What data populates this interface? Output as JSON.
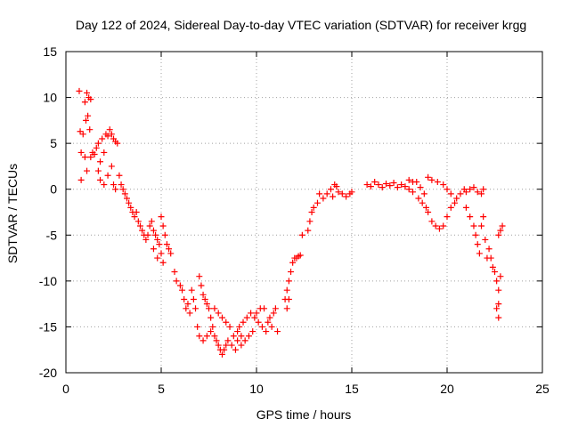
{
  "chart_data": {
    "type": "scatter",
    "title": "Day 122 of 2024, Sidereal Day-to-day VTEC variation (SDTVAR) for receiver krgg",
    "xlabel": "GPS time / hours",
    "ylabel": "SDTVAR / TECUs",
    "xlim": [
      0,
      25
    ],
    "ylim": [
      -20,
      15
    ],
    "xticks": [
      "0",
      "5",
      "10",
      "15",
      "20",
      "25"
    ],
    "yticks": [
      "-20",
      "-15",
      "-10",
      "-5",
      "0",
      "5",
      "10",
      "15"
    ],
    "grid": true,
    "marker": "+",
    "series_color": "#ff0000",
    "series": [
      {
        "name": "SDTVAR",
        "points": [
          [
            0.7,
            10.7
          ],
          [
            0.75,
            6.3
          ],
          [
            0.8,
            4.0
          ],
          [
            0.8,
            1.0
          ],
          [
            0.9,
            6.0
          ],
          [
            1.0,
            9.5
          ],
          [
            1.05,
            7.5
          ],
          [
            1.1,
            10.5
          ],
          [
            1.15,
            8.0
          ],
          [
            1.2,
            10.0
          ],
          [
            1.25,
            6.5
          ],
          [
            1.3,
            9.8
          ],
          [
            1.0,
            3.5
          ],
          [
            1.1,
            2.0
          ],
          [
            1.3,
            3.5
          ],
          [
            1.4,
            4.0
          ],
          [
            1.5,
            3.8
          ],
          [
            1.6,
            4.5
          ],
          [
            1.7,
            5.0
          ],
          [
            1.8,
            3.0
          ],
          [
            1.9,
            5.5
          ],
          [
            2.0,
            4.0
          ],
          [
            2.1,
            6.0
          ],
          [
            2.2,
            5.8
          ],
          [
            2.3,
            6.5
          ],
          [
            2.4,
            6.0
          ],
          [
            2.5,
            5.5
          ],
          [
            2.6,
            5.2
          ],
          [
            2.7,
            5.0
          ],
          [
            1.7,
            2.0
          ],
          [
            1.8,
            1.0
          ],
          [
            2.0,
            0.5
          ],
          [
            2.2,
            1.5
          ],
          [
            2.4,
            2.5
          ],
          [
            2.5,
            0.5
          ],
          [
            2.6,
            0.0
          ],
          [
            2.8,
            1.5
          ],
          [
            2.9,
            0.5
          ],
          [
            3.0,
            0.0
          ],
          [
            3.1,
            -0.5
          ],
          [
            3.2,
            -1.0
          ],
          [
            3.3,
            -1.5
          ],
          [
            3.4,
            -2.0
          ],
          [
            3.5,
            -2.5
          ],
          [
            3.6,
            -3.0
          ],
          [
            3.7,
            -2.5
          ],
          [
            3.8,
            -3.5
          ],
          [
            3.9,
            -4.0
          ],
          [
            4.0,
            -4.5
          ],
          [
            4.1,
            -5.0
          ],
          [
            4.2,
            -5.5
          ],
          [
            4.3,
            -5.0
          ],
          [
            4.4,
            -4.0
          ],
          [
            4.5,
            -3.5
          ],
          [
            4.6,
            -4.5
          ],
          [
            4.7,
            -5.0
          ],
          [
            4.8,
            -5.5
          ],
          [
            4.9,
            -6.0
          ],
          [
            5.0,
            -3.0
          ],
          [
            5.1,
            -4.0
          ],
          [
            5.2,
            -5.0
          ],
          [
            5.3,
            -6.0
          ],
          [
            5.4,
            -6.5
          ],
          [
            5.5,
            -7.0
          ],
          [
            4.6,
            -6.5
          ],
          [
            4.8,
            -7.5
          ],
          [
            5.0,
            -7.0
          ],
          [
            5.1,
            -8.0
          ],
          [
            5.7,
            -9.0
          ],
          [
            5.8,
            -10.0
          ],
          [
            6.0,
            -10.5
          ],
          [
            6.1,
            -11.0
          ],
          [
            6.2,
            -12.0
          ],
          [
            6.3,
            -13.0
          ],
          [
            6.4,
            -12.5
          ],
          [
            6.5,
            -13.5
          ],
          [
            6.6,
            -11.0
          ],
          [
            6.7,
            -12.0
          ],
          [
            6.8,
            -13.0
          ],
          [
            6.9,
            -15.0
          ],
          [
            7.0,
            -16.0
          ],
          [
            7.0,
            -9.5
          ],
          [
            7.1,
            -10.5
          ],
          [
            7.2,
            -11.5
          ],
          [
            7.3,
            -12.0
          ],
          [
            7.4,
            -12.5
          ],
          [
            7.5,
            -13.0
          ],
          [
            7.6,
            -14.0
          ],
          [
            7.7,
            -15.0
          ],
          [
            7.8,
            -16.0
          ],
          [
            7.9,
            -16.5
          ],
          [
            8.0,
            -17.0
          ],
          [
            8.1,
            -17.5
          ],
          [
            8.2,
            -18.0
          ],
          [
            8.3,
            -17.5
          ],
          [
            8.4,
            -17.0
          ],
          [
            7.2,
            -16.5
          ],
          [
            7.4,
            -16.0
          ],
          [
            7.6,
            -15.5
          ],
          [
            7.8,
            -13.0
          ],
          [
            8.0,
            -13.5
          ],
          [
            8.2,
            -14.0
          ],
          [
            8.4,
            -14.5
          ],
          [
            8.6,
            -15.0
          ],
          [
            8.8,
            -16.0
          ],
          [
            9.0,
            -16.5
          ],
          [
            9.2,
            -17.0
          ],
          [
            9.4,
            -16.5
          ],
          [
            9.6,
            -16.0
          ],
          [
            9.8,
            -15.5
          ],
          [
            8.5,
            -16.5
          ],
          [
            8.7,
            -17.0
          ],
          [
            8.9,
            -17.5
          ],
          [
            9.1,
            -15.0
          ],
          [
            9.3,
            -14.5
          ],
          [
            9.5,
            -14.0
          ],
          [
            9.7,
            -13.5
          ],
          [
            9.9,
            -14.0
          ],
          [
            10.1,
            -14.5
          ],
          [
            10.3,
            -15.0
          ],
          [
            10.5,
            -15.5
          ],
          [
            10.7,
            -14.0
          ],
          [
            10.9,
            -13.5
          ],
          [
            11.0,
            -13.0
          ],
          [
            11.1,
            -15.5
          ],
          [
            10.0,
            -13.5
          ],
          [
            10.2,
            -13.0
          ],
          [
            10.4,
            -13.0
          ],
          [
            10.6,
            -14.5
          ],
          [
            10.8,
            -15.0
          ],
          [
            9.0,
            -15.5
          ],
          [
            9.2,
            -16.0
          ],
          [
            11.5,
            -12.0
          ],
          [
            11.6,
            -11.0
          ],
          [
            11.7,
            -10.0
          ],
          [
            11.8,
            -9.0
          ],
          [
            11.9,
            -8.0
          ],
          [
            12.0,
            -7.5
          ],
          [
            12.1,
            -7.5
          ],
          [
            12.2,
            -7.3
          ],
          [
            12.3,
            -7.2
          ],
          [
            11.6,
            -13.0
          ],
          [
            11.7,
            -12.0
          ],
          [
            12.4,
            -5.0
          ],
          [
            12.7,
            -4.5
          ],
          [
            12.8,
            -3.5
          ],
          [
            12.9,
            -2.5
          ],
          [
            13.0,
            -2.0
          ],
          [
            13.2,
            -1.5
          ],
          [
            13.3,
            -0.5
          ],
          [
            13.5,
            -1.0
          ],
          [
            13.7,
            -0.5
          ],
          [
            13.9,
            0.0
          ],
          [
            14.0,
            -0.8
          ],
          [
            14.1,
            0.5
          ],
          [
            14.2,
            0.3
          ],
          [
            14.3,
            -0.3
          ],
          [
            14.5,
            -0.5
          ],
          [
            14.7,
            -0.8
          ],
          [
            14.9,
            -0.5
          ],
          [
            15.0,
            -0.3
          ],
          [
            15.8,
            0.5
          ],
          [
            16.0,
            0.3
          ],
          [
            16.2,
            0.8
          ],
          [
            16.4,
            0.5
          ],
          [
            16.6,
            0.2
          ],
          [
            16.8,
            0.6
          ],
          [
            17.0,
            0.4
          ],
          [
            17.2,
            0.7
          ],
          [
            17.4,
            0.2
          ],
          [
            17.6,
            0.5
          ],
          [
            17.8,
            0.3
          ],
          [
            18.0,
            0.0
          ],
          [
            18.2,
            -0.3
          ],
          [
            18.4,
            0.8
          ],
          [
            18.6,
            0.2
          ],
          [
            18.8,
            -0.5
          ],
          [
            18.0,
            1.0
          ],
          [
            18.2,
            0.8
          ],
          [
            18.5,
            -1.0
          ],
          [
            18.7,
            -1.5
          ],
          [
            18.9,
            -2.0
          ],
          [
            19.0,
            -2.5
          ],
          [
            19.2,
            -3.5
          ],
          [
            19.4,
            -4.0
          ],
          [
            19.6,
            -4.3
          ],
          [
            19.8,
            -4.0
          ],
          [
            20.0,
            -3.0
          ],
          [
            20.2,
            -2.0
          ],
          [
            20.4,
            -1.5
          ],
          [
            19.0,
            1.3
          ],
          [
            19.2,
            1.0
          ],
          [
            19.5,
            0.8
          ],
          [
            19.8,
            0.5
          ],
          [
            20.0,
            0.0
          ],
          [
            20.2,
            -0.5
          ],
          [
            20.5,
            -1.0
          ],
          [
            20.7,
            -0.5
          ],
          [
            20.9,
            0.0
          ],
          [
            21.0,
            -0.3
          ],
          [
            21.2,
            0.0
          ],
          [
            21.4,
            0.2
          ],
          [
            21.6,
            -0.3
          ],
          [
            21.8,
            -0.5
          ],
          [
            21.9,
            0.0
          ],
          [
            21.0,
            -2.0
          ],
          [
            21.2,
            -3.0
          ],
          [
            21.4,
            -4.0
          ],
          [
            21.5,
            -5.0
          ],
          [
            21.6,
            -6.0
          ],
          [
            21.7,
            -7.0
          ],
          [
            21.8,
            -4.0
          ],
          [
            21.9,
            -3.0
          ],
          [
            22.0,
            -5.5
          ],
          [
            22.1,
            -7.5
          ],
          [
            22.2,
            -6.5
          ],
          [
            22.3,
            -7.5
          ],
          [
            22.4,
            -8.5
          ],
          [
            22.5,
            -9.0
          ],
          [
            22.6,
            -10.0
          ],
          [
            22.7,
            -11.0
          ],
          [
            22.7,
            -12.5
          ],
          [
            22.7,
            -14.0
          ],
          [
            22.6,
            -13.0
          ],
          [
            22.8,
            -9.5
          ],
          [
            22.8,
            -4.5
          ],
          [
            22.7,
            -5.0
          ],
          [
            22.9,
            -4.0
          ]
        ]
      }
    ]
  }
}
